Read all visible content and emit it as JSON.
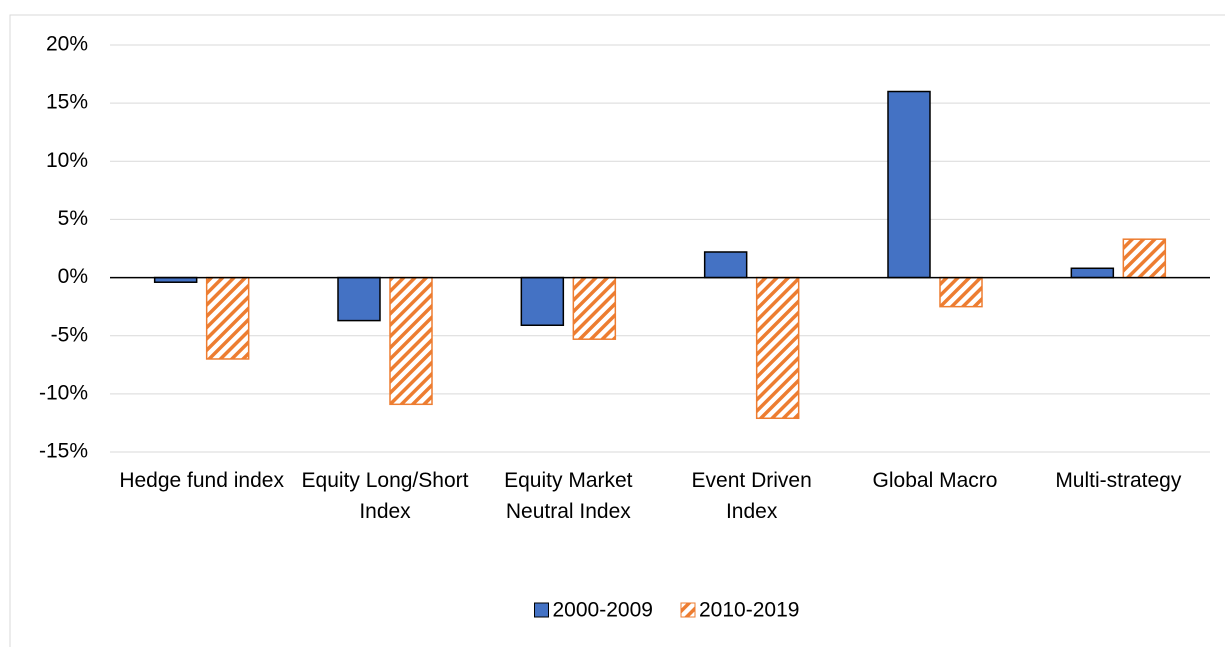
{
  "chart_data": {
    "type": "bar",
    "categories": [
      "Hedge fund index",
      "Equity Long/Short Index",
      "Equity Market Neutral Index",
      "Event Driven Index",
      "Global Macro",
      "Multi-strategy"
    ],
    "series": [
      {
        "name": "2000-2009",
        "color": "#4472c4",
        "values": [
          -0.4,
          -3.7,
          -4.1,
          2.2,
          16.0,
          0.8
        ]
      },
      {
        "name": "2010-2019",
        "color": "#ed7d31",
        "pattern": "hatch",
        "values": [
          -7.0,
          -10.9,
          -5.3,
          -12.1,
          -2.5,
          3.3
        ]
      }
    ],
    "ylim": [
      -15,
      20
    ],
    "yticks": [
      {
        "value": -15,
        "label": "-15%"
      },
      {
        "value": -10,
        "label": "-10%"
      },
      {
        "value": -5,
        "label": "-5%"
      },
      {
        "value": 0,
        "label": "0%"
      },
      {
        "value": 5,
        "label": "5%"
      },
      {
        "value": 10,
        "label": "10%"
      },
      {
        "value": 15,
        "label": "15%"
      },
      {
        "value": 20,
        "label": "20%"
      }
    ],
    "grid": true,
    "legend": "bottom"
  }
}
